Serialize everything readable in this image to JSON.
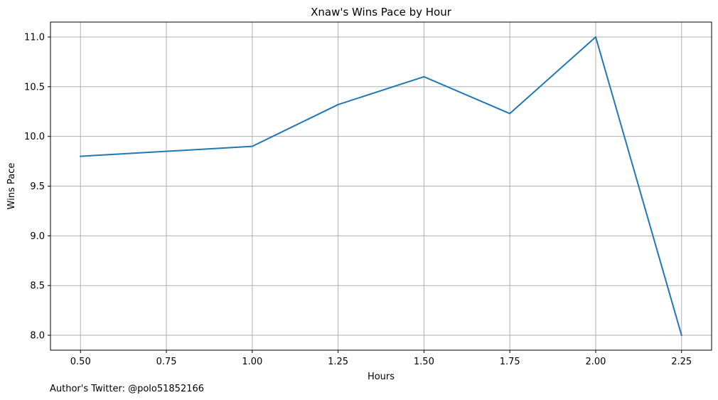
{
  "chart_data": {
    "type": "line",
    "title": "Xnaw's Wins Pace by Hour",
    "xlabel": "Hours",
    "ylabel": "Wins Pace",
    "x": [
      0.5,
      1.0,
      1.25,
      1.5,
      1.75,
      2.0,
      2.25
    ],
    "series": [
      {
        "values": [
          9.8,
          9.9,
          10.32,
          10.6,
          10.23,
          11.0,
          8.0
        ],
        "color": "#1f77b4"
      }
    ],
    "xlim": [
      0.4125,
      2.3375
    ],
    "ylim": [
      7.85,
      11.15
    ],
    "xticks": [
      0.5,
      0.75,
      1.0,
      1.25,
      1.5,
      1.75,
      2.0,
      2.25
    ],
    "xtick_labels": [
      "0.50",
      "0.75",
      "1.00",
      "1.25",
      "1.50",
      "1.75",
      "2.00",
      "2.25"
    ],
    "yticks": [
      8.0,
      8.5,
      9.0,
      9.5,
      10.0,
      10.5,
      11.0
    ],
    "ytick_labels": [
      "8.0",
      "8.5",
      "9.0",
      "9.5",
      "10.0",
      "10.5",
      "11.0"
    ],
    "grid": true,
    "legend": "none"
  },
  "footer": {
    "text": "Author's Twitter: @polo51852166"
  }
}
